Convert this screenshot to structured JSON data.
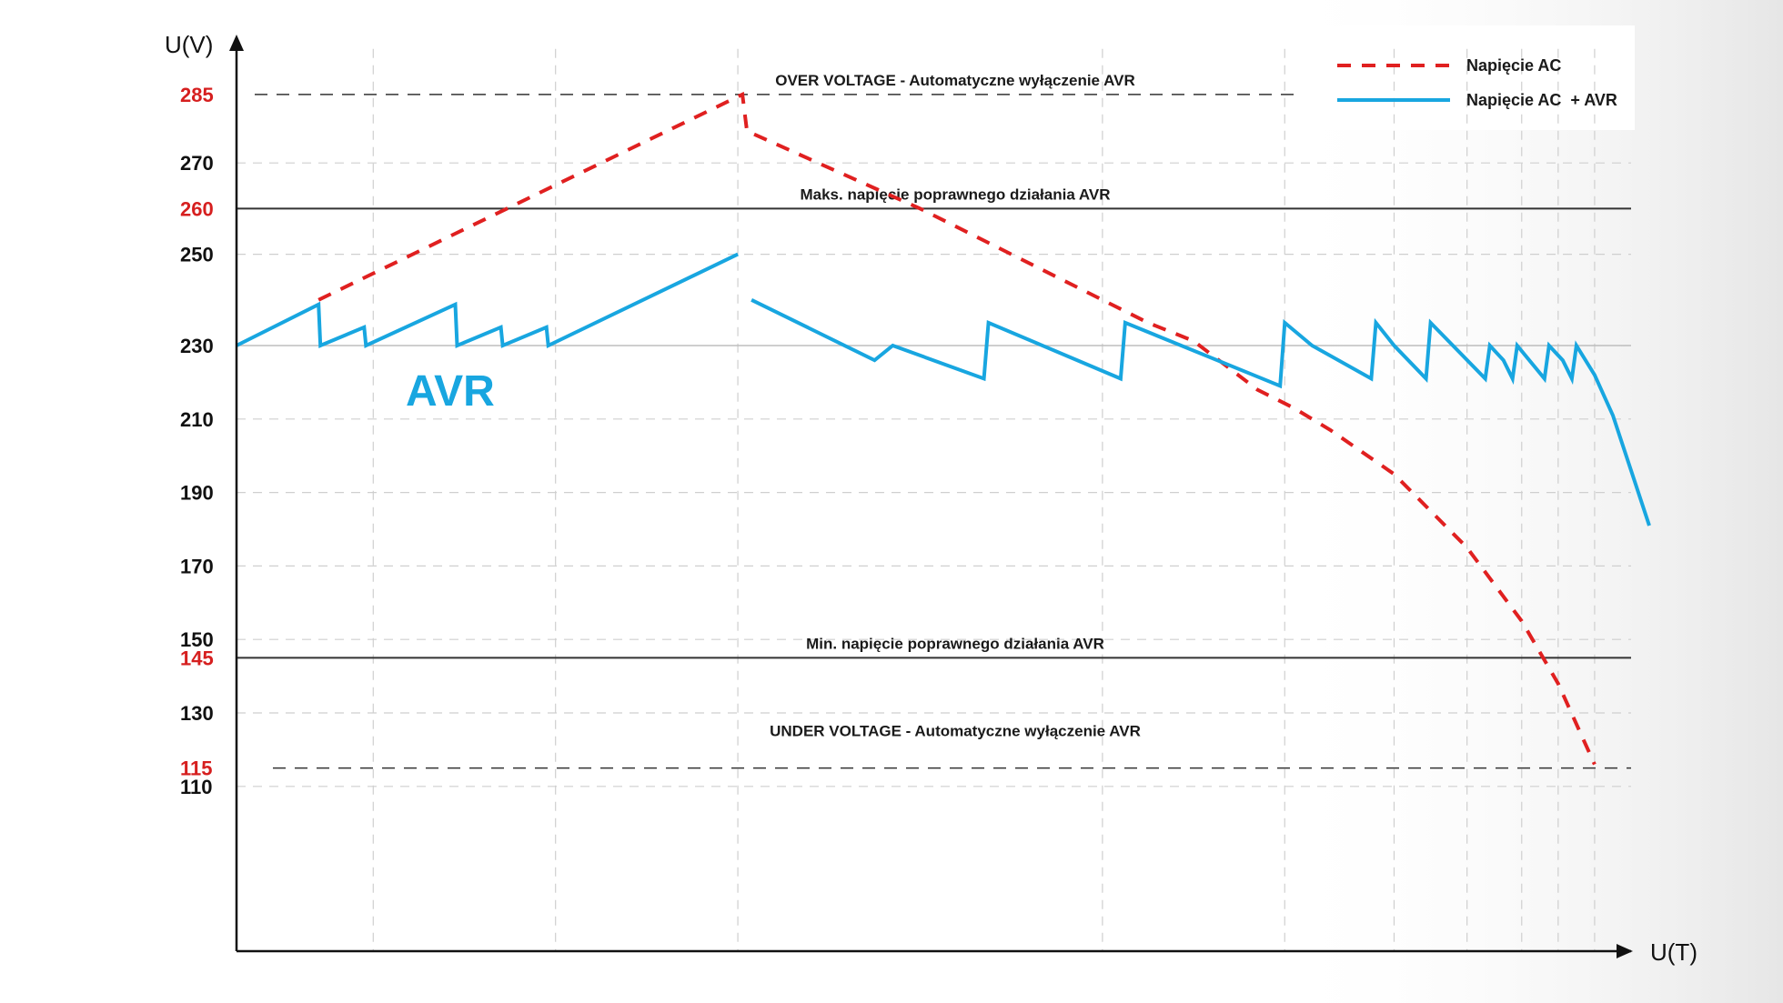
{
  "chart_data": {
    "type": "line",
    "xlabel": "U(T)",
    "ylabel": "U(V)",
    "ylim": [
      100,
      295
    ],
    "xlim": [
      0,
      15.3
    ],
    "grid": true,
    "legend_position": "top-right",
    "y_ticks": [
      {
        "value": 285,
        "label": "285",
        "highlight": true
      },
      {
        "value": 270,
        "label": "270",
        "highlight": false
      },
      {
        "value": 260,
        "label": "260",
        "highlight": true
      },
      {
        "value": 250,
        "label": "250",
        "highlight": false
      },
      {
        "value": 230,
        "label": "230",
        "highlight": false
      },
      {
        "value": 210,
        "label": "210",
        "highlight": false
      },
      {
        "value": 190,
        "label": "190",
        "highlight": false
      },
      {
        "value": 170,
        "label": "170",
        "highlight": false
      },
      {
        "value": 150,
        "label": "150",
        "highlight": false
      },
      {
        "value": 145,
        "label": "145",
        "highlight": true
      },
      {
        "value": 130,
        "label": "130",
        "highlight": false
      },
      {
        "value": 115,
        "label": "115",
        "highlight": true
      },
      {
        "value": 110,
        "label": "110",
        "highlight": false
      }
    ],
    "v_grid_x": [
      1.5,
      3.5,
      5.5,
      9.5,
      11.5,
      12.7,
      13.5,
      14.1,
      14.5,
      14.9
    ],
    "h_grid_y": [
      270,
      250,
      210,
      190,
      170,
      150,
      130,
      110
    ],
    "reference_lines": [
      {
        "y": 285,
        "style": "dashed",
        "label": "OVER VOLTAGE - Automatyczne wyłączenie AVR"
      },
      {
        "y": 260,
        "style": "solid",
        "label": "Maks. napięcie poprawnego działania AVR"
      },
      {
        "y": 230,
        "style": "solid-gray",
        "label": ""
      },
      {
        "y": 145,
        "style": "solid",
        "label": "Min. napięcie poprawnego działania AVR"
      },
      {
        "y": 115,
        "style": "dashed",
        "label": "UNDER VOLTAGE - Automatyczne wyłączenie AVR"
      }
    ],
    "annotation": "AVR",
    "series": [
      {
        "name": "Napięcie AC",
        "style": "dashed",
        "color": "#e02020",
        "points": [
          [
            0.9,
            240
          ],
          [
            5.55,
            285
          ],
          [
            5.6,
            277
          ],
          [
            7.5,
            260
          ],
          [
            10.0,
            235
          ],
          [
            10.5,
            231
          ],
          [
            11.2,
            218
          ],
          [
            11.6,
            213
          ],
          [
            12.0,
            207
          ],
          [
            12.7,
            195
          ],
          [
            13.5,
            175
          ],
          [
            14.1,
            155
          ],
          [
            14.5,
            138
          ],
          [
            14.9,
            116
          ]
        ]
      },
      {
        "name": "Napięcie AC  + AVR",
        "style": "solid",
        "color": "#18a6e0",
        "points": [
          [
            0,
            230
          ],
          [
            0.9,
            239
          ],
          [
            0.92,
            230
          ],
          [
            1.4,
            234
          ],
          [
            1.42,
            230
          ],
          [
            2.4,
            239
          ],
          [
            2.42,
            230
          ],
          [
            2.9,
            234
          ],
          [
            2.92,
            230
          ],
          [
            3.4,
            234
          ],
          [
            3.42,
            230
          ],
          [
            5.5,
            250
          ],
          null,
          [
            5.65,
            240
          ],
          [
            7.0,
            226
          ],
          [
            7.2,
            230
          ],
          [
            8.2,
            221
          ],
          [
            8.25,
            235
          ],
          [
            9.7,
            221
          ],
          [
            9.75,
            235
          ],
          [
            11.45,
            219
          ],
          [
            11.5,
            235
          ],
          [
            11.8,
            230
          ],
          [
            12.45,
            221
          ],
          [
            12.5,
            235
          ],
          [
            12.7,
            230
          ],
          [
            13.05,
            221
          ],
          [
            13.1,
            235
          ],
          [
            13.7,
            221
          ],
          [
            13.75,
            230
          ],
          [
            13.9,
            226
          ],
          [
            14.0,
            221
          ],
          [
            14.05,
            230
          ],
          [
            14.35,
            221
          ],
          [
            14.4,
            230
          ],
          [
            14.55,
            226
          ],
          [
            14.65,
            221
          ],
          [
            14.7,
            230
          ],
          [
            14.9,
            222
          ],
          [
            15.1,
            211
          ],
          [
            15.3,
            196
          ],
          [
            15.5,
            181
          ]
        ]
      }
    ]
  }
}
